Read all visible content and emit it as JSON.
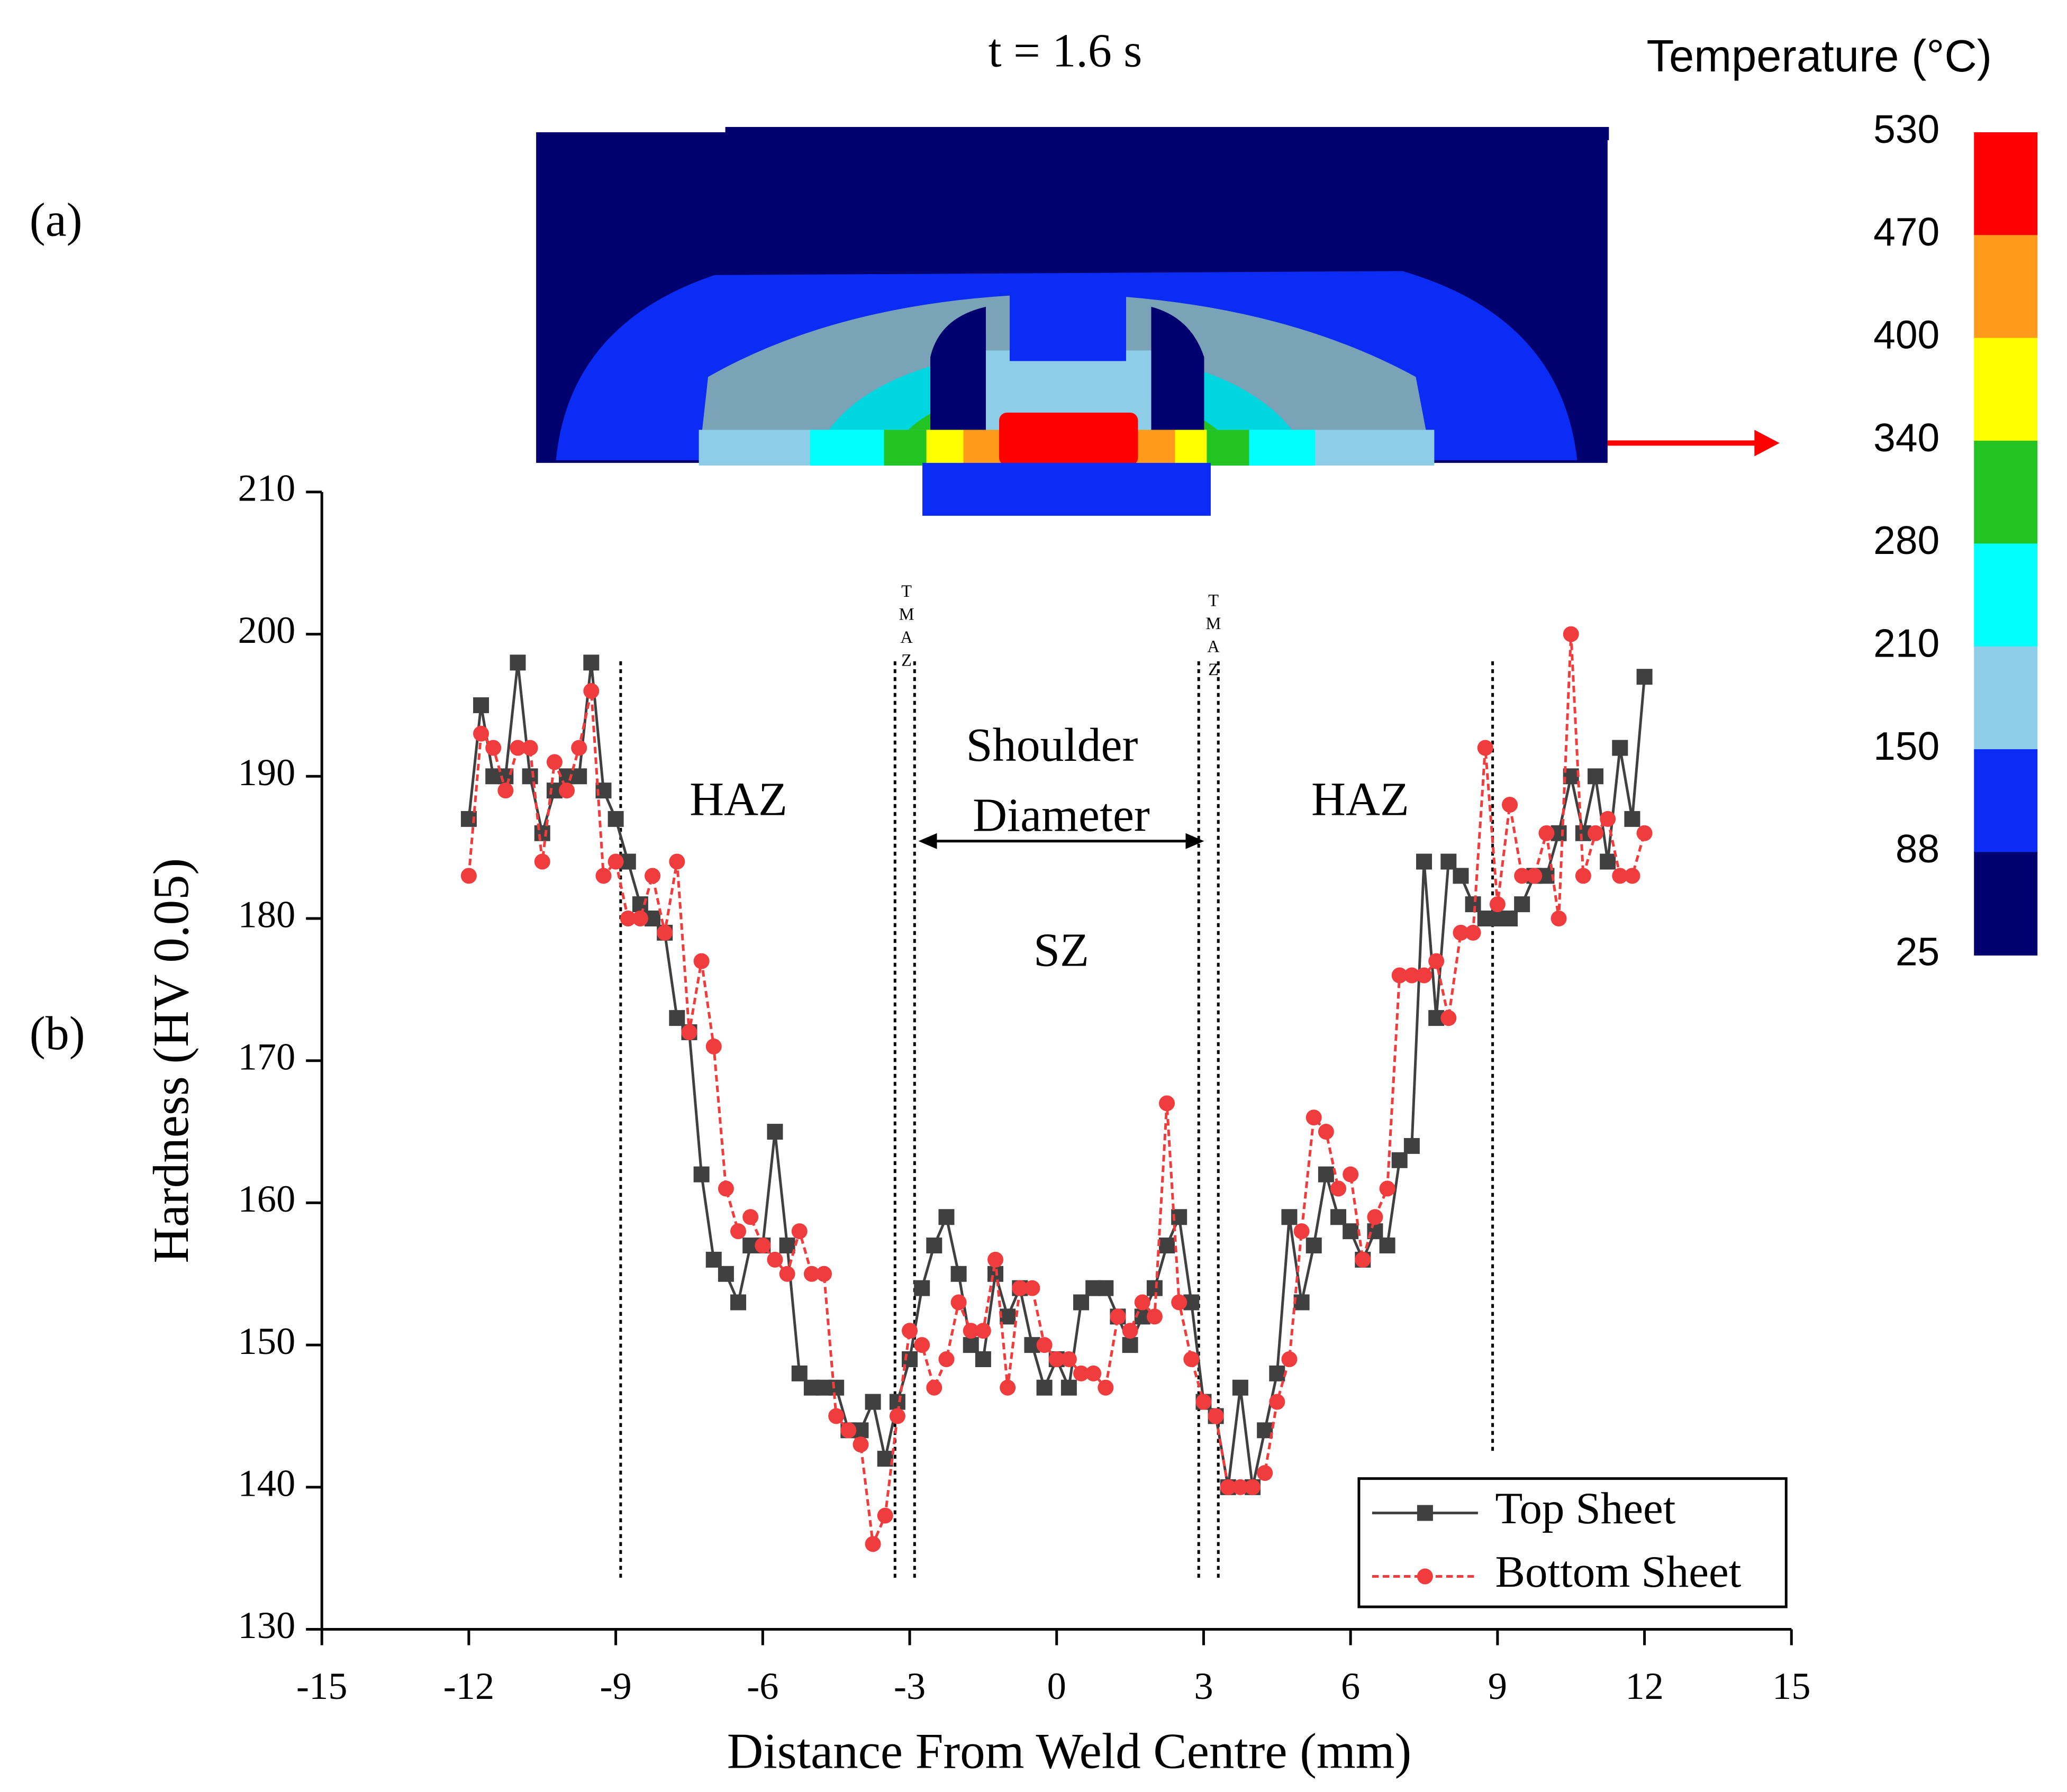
{
  "chart_data": {
    "type": "line",
    "title": "t = 1.6 s",
    "panel_labels": [
      "(a)",
      "(b)"
    ],
    "xlabel": "Distance From Weld Centre (mm)",
    "ylabel": "Hardness (HV 0.05)",
    "xlim": [
      -15,
      15
    ],
    "xticks": [
      -15,
      -12,
      -9,
      -6,
      -3,
      0,
      3,
      6,
      9,
      12,
      15
    ],
    "ylim": [
      130,
      210
    ],
    "yticks": [
      130,
      140,
      150,
      160,
      170,
      180,
      190,
      200,
      210
    ],
    "legend": "lower right",
    "x": [
      -12,
      -11.75,
      -11.5,
      -11.25,
      -11,
      -10.75,
      -10.5,
      -10.25,
      -10,
      -9.75,
      -9.5,
      -9.25,
      -9,
      -8.75,
      -8.5,
      -8.25,
      -8,
      -7.75,
      -7.5,
      -7.25,
      -7,
      -6.75,
      -6.5,
      -6.25,
      -6,
      -5.75,
      -5.5,
      -5.25,
      -5,
      -4.75,
      -4.5,
      -4.25,
      -4,
      -3.75,
      -3.5,
      -3.25,
      -3,
      -2.75,
      -2.5,
      -2.25,
      -2,
      -1.75,
      -1.5,
      -1.25,
      -1,
      -0.75,
      -0.5,
      -0.25,
      0,
      0.25,
      0.5,
      0.75,
      1,
      1.25,
      1.5,
      1.75,
      2,
      2.25,
      2.5,
      2.75,
      3,
      3.25,
      3.5,
      3.75,
      4,
      4.25,
      4.5,
      4.75,
      5,
      5.25,
      5.5,
      5.75,
      6,
      6.25,
      6.5,
      6.75,
      7,
      7.25,
      7.5,
      7.75,
      8,
      8.25,
      8.5,
      8.75,
      9,
      9.25,
      9.5,
      9.75,
      10,
      10.25,
      10.5,
      10.75,
      11,
      11.25,
      11.5,
      11.75,
      12
    ],
    "series": [
      {
        "name": "Top Sheet",
        "color": "#404040",
        "marker": "square",
        "dash": "solid",
        "values": [
          187,
          195,
          190,
          190,
          198,
          190,
          186,
          189,
          190,
          190,
          198,
          189,
          187,
          184,
          181,
          180,
          179,
          173,
          172,
          162,
          156,
          155,
          153,
          157,
          157,
          165,
          157,
          148,
          147,
          147,
          147,
          144,
          144,
          146,
          142,
          146,
          149,
          154,
          157,
          159,
          155,
          150,
          149,
          155,
          152,
          154,
          150,
          147,
          149,
          147,
          153,
          154,
          154,
          152,
          150,
          152,
          154,
          157,
          159,
          153,
          146,
          145,
          140,
          147,
          140,
          144,
          148,
          159,
          153,
          157,
          162,
          159,
          158,
          156,
          158,
          157,
          163,
          164,
          184,
          173,
          184,
          183,
          181,
          180,
          180,
          180,
          181,
          183,
          183,
          186,
          190,
          186,
          190,
          184,
          192,
          187,
          197
        ]
      },
      {
        "name": "Bottom Sheet",
        "color": "#f03c3c",
        "marker": "circle",
        "dash": "dashed",
        "values": [
          183,
          193,
          192,
          189,
          192,
          192,
          184,
          191,
          189,
          192,
          196,
          183,
          184,
          180,
          180,
          183,
          179,
          184,
          172,
          177,
          171,
          161,
          158,
          159,
          157,
          156,
          155,
          158,
          155,
          155,
          145,
          144,
          143,
          136,
          138,
          145,
          151,
          150,
          147,
          149,
          153,
          151,
          151,
          156,
          147,
          154,
          154,
          150,
          149,
          149,
          148,
          148,
          147,
          152,
          151,
          153,
          152,
          167,
          153,
          149,
          146,
          145,
          140,
          140,
          140,
          141,
          146,
          149,
          158,
          166,
          165,
          161,
          162,
          156,
          159,
          161,
          176,
          176,
          176,
          177,
          173,
          179,
          179,
          192,
          181,
          188,
          183,
          183,
          186,
          180,
          200,
          183,
          186,
          187,
          183,
          183,
          186
        ]
      }
    ],
    "zone_lines": [
      -8.9,
      -3.3,
      -2.9,
      2.9,
      3.3,
      8.9
    ],
    "annotations": [
      "HAZ",
      "Shoulder",
      "Diameter",
      "SZ",
      "HAZ",
      "TMAZ",
      "TMAZ"
    ],
    "colorbar": {
      "title": "Temperature (°C)",
      "ticks": [
        530,
        470,
        400,
        340,
        280,
        210,
        150,
        88,
        25
      ],
      "colors": [
        "#ff0000",
        "#ff9a1a",
        "#ffff00",
        "#22c322",
        "#00ffff",
        "#8ecde8",
        "#0a2cf5",
        "#00006e"
      ]
    }
  }
}
